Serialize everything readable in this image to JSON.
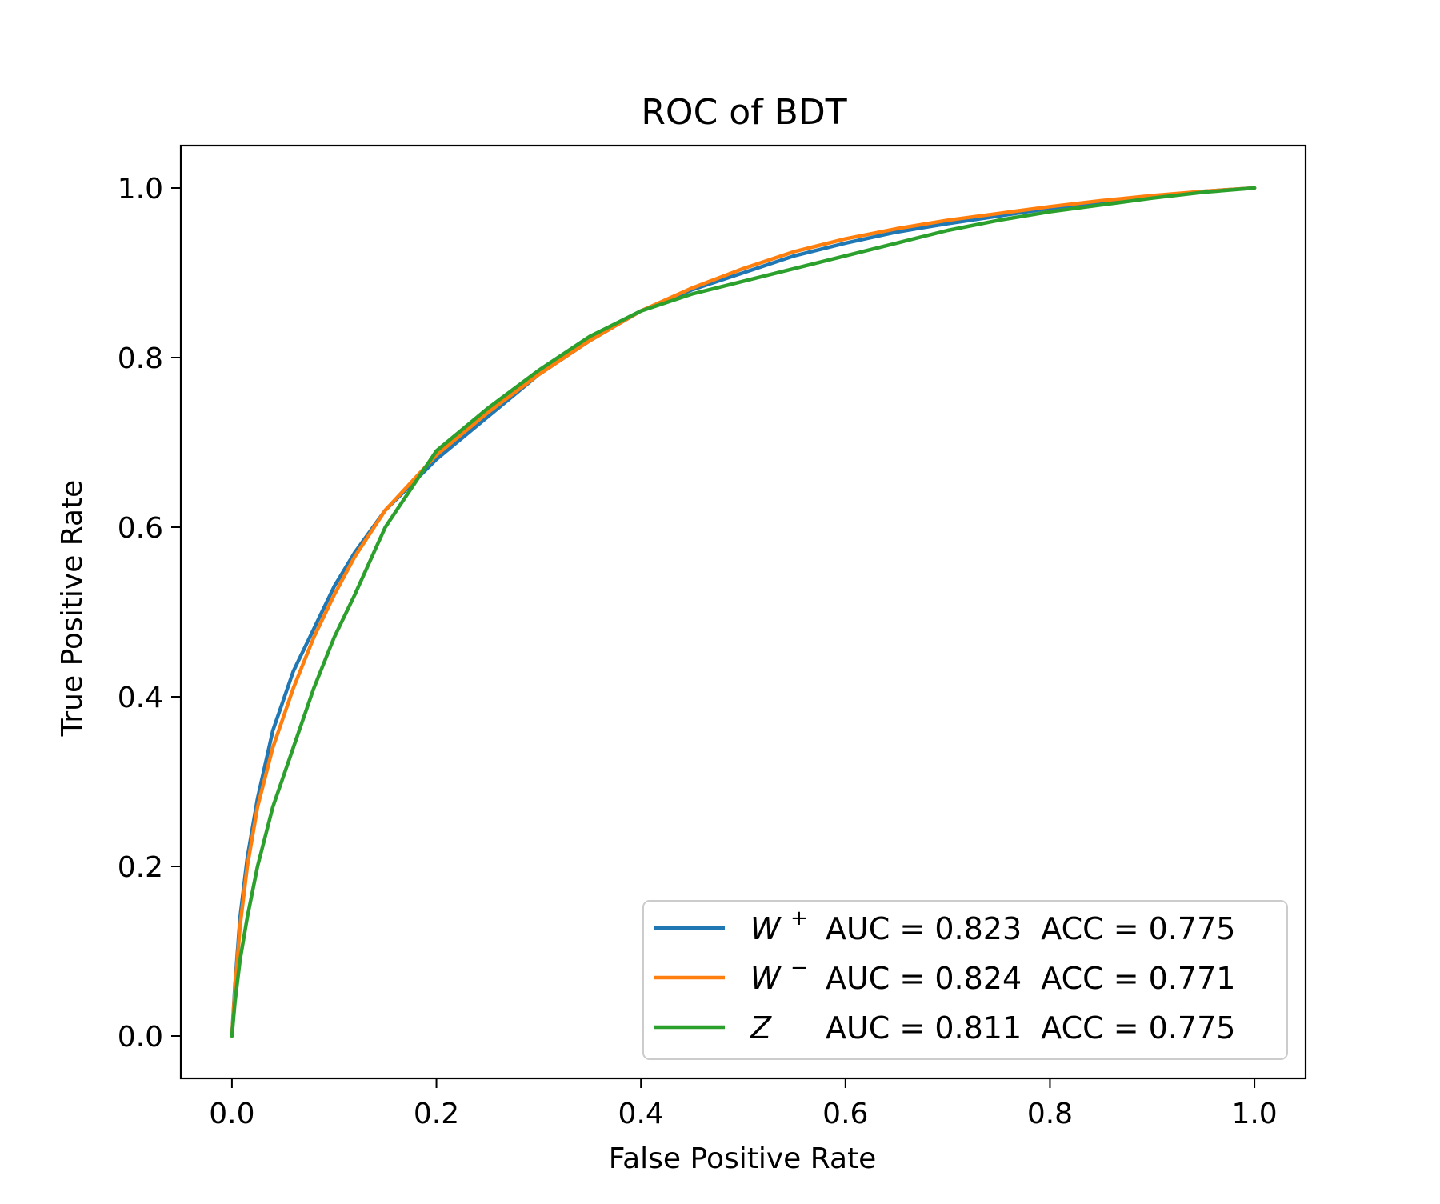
{
  "chart_data": {
    "type": "line",
    "title": "ROC of BDT",
    "xlabel": "False Positive Rate",
    "ylabel": "True Positive Rate",
    "xlim": [
      -0.05,
      1.05
    ],
    "ylim": [
      -0.05,
      1.05
    ],
    "xticks": [
      0.0,
      0.2,
      0.4,
      0.6,
      0.8,
      1.0
    ],
    "xtick_labels": [
      "0.0",
      "0.2",
      "0.4",
      "0.6",
      "0.8",
      "1.0"
    ],
    "yticks": [
      0.0,
      0.2,
      0.4,
      0.6,
      0.8,
      1.0
    ],
    "ytick_labels": [
      "0.0",
      "0.2",
      "0.4",
      "0.6",
      "0.8",
      "1.0"
    ],
    "grid": false,
    "legend_position": "lower-right",
    "series": [
      {
        "name": "W+",
        "legend_symbol": "W",
        "legend_superscript": "+",
        "legend_text": "AUC = 0.823  ACC = 0.775",
        "color": "#1f77b4",
        "x": [
          0,
          0.003,
          0.008,
          0.015,
          0.025,
          0.04,
          0.06,
          0.08,
          0.1,
          0.12,
          0.15,
          0.2,
          0.25,
          0.3,
          0.35,
          0.4,
          0.45,
          0.5,
          0.55,
          0.6,
          0.65,
          0.7,
          0.75,
          0.8,
          0.85,
          0.9,
          0.95,
          1.0
        ],
        "y": [
          0,
          0.06,
          0.14,
          0.21,
          0.28,
          0.36,
          0.43,
          0.48,
          0.53,
          0.57,
          0.62,
          0.68,
          0.73,
          0.78,
          0.82,
          0.855,
          0.88,
          0.9,
          0.92,
          0.935,
          0.948,
          0.958,
          0.967,
          0.976,
          0.984,
          0.99,
          0.996,
          1.0
        ]
      },
      {
        "name": "W-",
        "legend_symbol": "W",
        "legend_superscript": "−",
        "legend_text": "AUC = 0.824  ACC = 0.771",
        "color": "#ff7f0e",
        "x": [
          0,
          0.003,
          0.008,
          0.015,
          0.025,
          0.04,
          0.06,
          0.08,
          0.1,
          0.12,
          0.15,
          0.2,
          0.25,
          0.3,
          0.35,
          0.4,
          0.45,
          0.5,
          0.55,
          0.6,
          0.65,
          0.7,
          0.75,
          0.8,
          0.85,
          0.9,
          0.95,
          1.0
        ],
        "y": [
          0,
          0.055,
          0.13,
          0.2,
          0.27,
          0.34,
          0.41,
          0.47,
          0.52,
          0.565,
          0.62,
          0.685,
          0.735,
          0.78,
          0.82,
          0.855,
          0.882,
          0.905,
          0.925,
          0.94,
          0.952,
          0.962,
          0.97,
          0.978,
          0.985,
          0.991,
          0.996,
          1.0
        ]
      },
      {
        "name": "Z",
        "legend_symbol": "Z",
        "legend_superscript": "",
        "legend_text": "AUC = 0.811  ACC = 0.775",
        "color": "#2ca02c",
        "x": [
          0,
          0.003,
          0.008,
          0.015,
          0.025,
          0.04,
          0.06,
          0.08,
          0.1,
          0.12,
          0.15,
          0.2,
          0.25,
          0.3,
          0.35,
          0.4,
          0.45,
          0.5,
          0.55,
          0.6,
          0.65,
          0.7,
          0.75,
          0.8,
          0.85,
          0.9,
          0.95,
          1.0
        ],
        "y": [
          0,
          0.04,
          0.09,
          0.14,
          0.2,
          0.27,
          0.34,
          0.41,
          0.47,
          0.52,
          0.6,
          0.69,
          0.74,
          0.785,
          0.825,
          0.855,
          0.875,
          0.89,
          0.905,
          0.92,
          0.935,
          0.95,
          0.962,
          0.972,
          0.98,
          0.988,
          0.995,
          1.0
        ]
      }
    ]
  }
}
